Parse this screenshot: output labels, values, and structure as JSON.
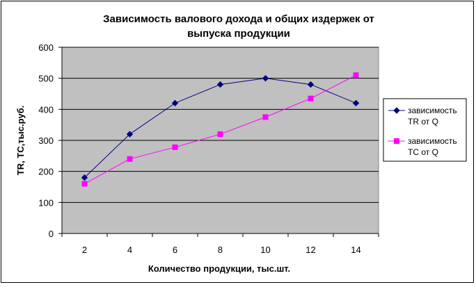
{
  "chart_data": {
    "type": "line",
    "title_lines": [
      "Зависимость валового дохода и общих издержек от",
      "выпуска продукции"
    ],
    "xlabel": "Количество продукции, тыс.шт.",
    "ylabel": "TR,  TC,тыс.руб.",
    "x": [
      2,
      4,
      6,
      8,
      10,
      12,
      14
    ],
    "ylim": [
      0,
      600
    ],
    "yticks": [
      0,
      100,
      200,
      300,
      400,
      500,
      600
    ],
    "grid": "horizontal",
    "legend_position": "right",
    "series": [
      {
        "name_lines": [
          "зависимость",
          "TR от Q"
        ],
        "color": "#000080",
        "marker": "diamond",
        "values": [
          180,
          320,
          420,
          480,
          500,
          480,
          420
        ]
      },
      {
        "name_lines": [
          "зависимость",
          "TC от Q"
        ],
        "color": "#FF00FF",
        "marker": "square",
        "values": [
          160,
          240,
          278,
          320,
          375,
          435,
          510
        ]
      }
    ],
    "colors": {
      "plot_background": "#C0C0C0",
      "gridline": "#000000"
    }
  }
}
